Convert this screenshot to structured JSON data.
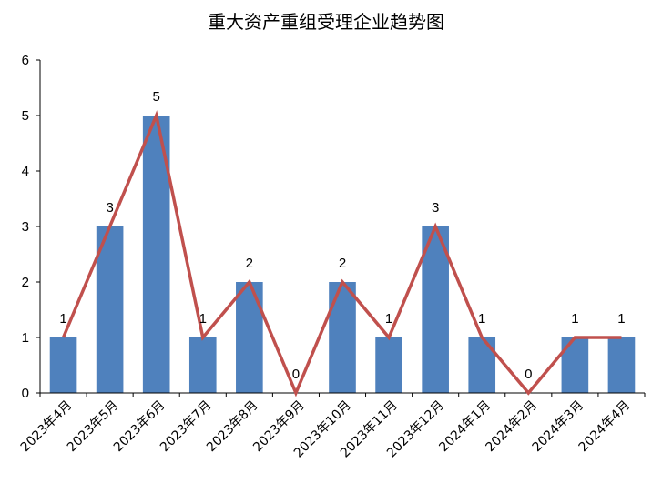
{
  "chart_data": {
    "type": "bar",
    "title": "重大资产重组受理企业趋势图",
    "xlabel": "",
    "ylabel": "",
    "categories": [
      "2023年4月",
      "2023年5月",
      "2023年6月",
      "2023年7月",
      "2023年8月",
      "2023年9月",
      "2023年10月",
      "2023年11月",
      "2023年12月",
      "2024年1月",
      "2024年2月",
      "2024年3月",
      "2024年4月"
    ],
    "values": [
      1,
      3,
      5,
      1,
      2,
      0,
      2,
      1,
      3,
      1,
      0,
      1,
      1
    ],
    "line_values": [
      1,
      3,
      5,
      1,
      2,
      0,
      2,
      1,
      3,
      1,
      0,
      1,
      1
    ],
    "yticks": [
      0,
      1,
      2,
      3,
      4,
      5,
      6
    ],
    "ylim": [
      0,
      6
    ],
    "grid": false,
    "legend": "none",
    "colors": {
      "bar": "#4F81BD",
      "line": "#C0504D",
      "axis": "#000000"
    }
  }
}
